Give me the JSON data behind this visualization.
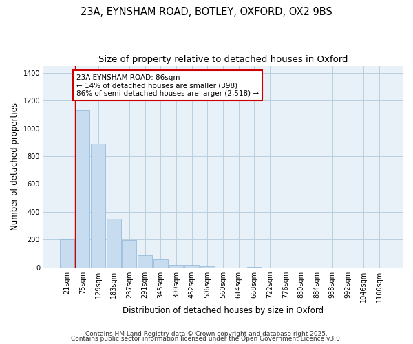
{
  "title_line1": "23A, EYNSHAM ROAD, BOTLEY, OXFORD, OX2 9BS",
  "title_line2": "Size of property relative to detached houses in Oxford",
  "xlabel": "Distribution of detached houses by size in Oxford",
  "ylabel": "Number of detached properties",
  "bar_labels": [
    "21sqm",
    "75sqm",
    "129sqm",
    "183sqm",
    "237sqm",
    "291sqm",
    "345sqm",
    "399sqm",
    "452sqm",
    "506sqm",
    "560sqm",
    "614sqm",
    "668sqm",
    "722sqm",
    "776sqm",
    "830sqm",
    "884sqm",
    "938sqm",
    "992sqm",
    "1046sqm",
    "1100sqm"
  ],
  "bar_heights": [
    200,
    1130,
    890,
    350,
    195,
    90,
    57,
    20,
    18,
    10,
    0,
    0,
    2,
    0,
    0,
    0,
    0,
    0,
    0,
    0,
    0
  ],
  "bar_color": "#c8dcf0",
  "bar_edge_color": "#8ab4d8",
  "grid_color": "#b8cfe0",
  "background_color": "#ffffff",
  "ax_background_color": "#e8f0f8",
  "vline_color": "#cc0000",
  "vline_x_index": 0.5,
  "annotation_text": "23A EYNSHAM ROAD: 86sqm\n← 14% of detached houses are smaller (398)\n86% of semi-detached houses are larger (2,518) →",
  "annotation_box_color": "#ffffff",
  "annotation_box_edge": "#cc0000",
  "ylim": [
    0,
    1450
  ],
  "yticks": [
    0,
    200,
    400,
    600,
    800,
    1000,
    1200,
    1400
  ],
  "footer_line1": "Contains HM Land Registry data © Crown copyright and database right 2025.",
  "footer_line2": "Contains public sector information licensed under the Open Government Licence v3.0.",
  "title_fontsize": 10.5,
  "subtitle_fontsize": 9.5,
  "axis_label_fontsize": 8.5,
  "tick_fontsize": 7,
  "footer_fontsize": 6.5,
  "annotation_fontsize": 7.5
}
